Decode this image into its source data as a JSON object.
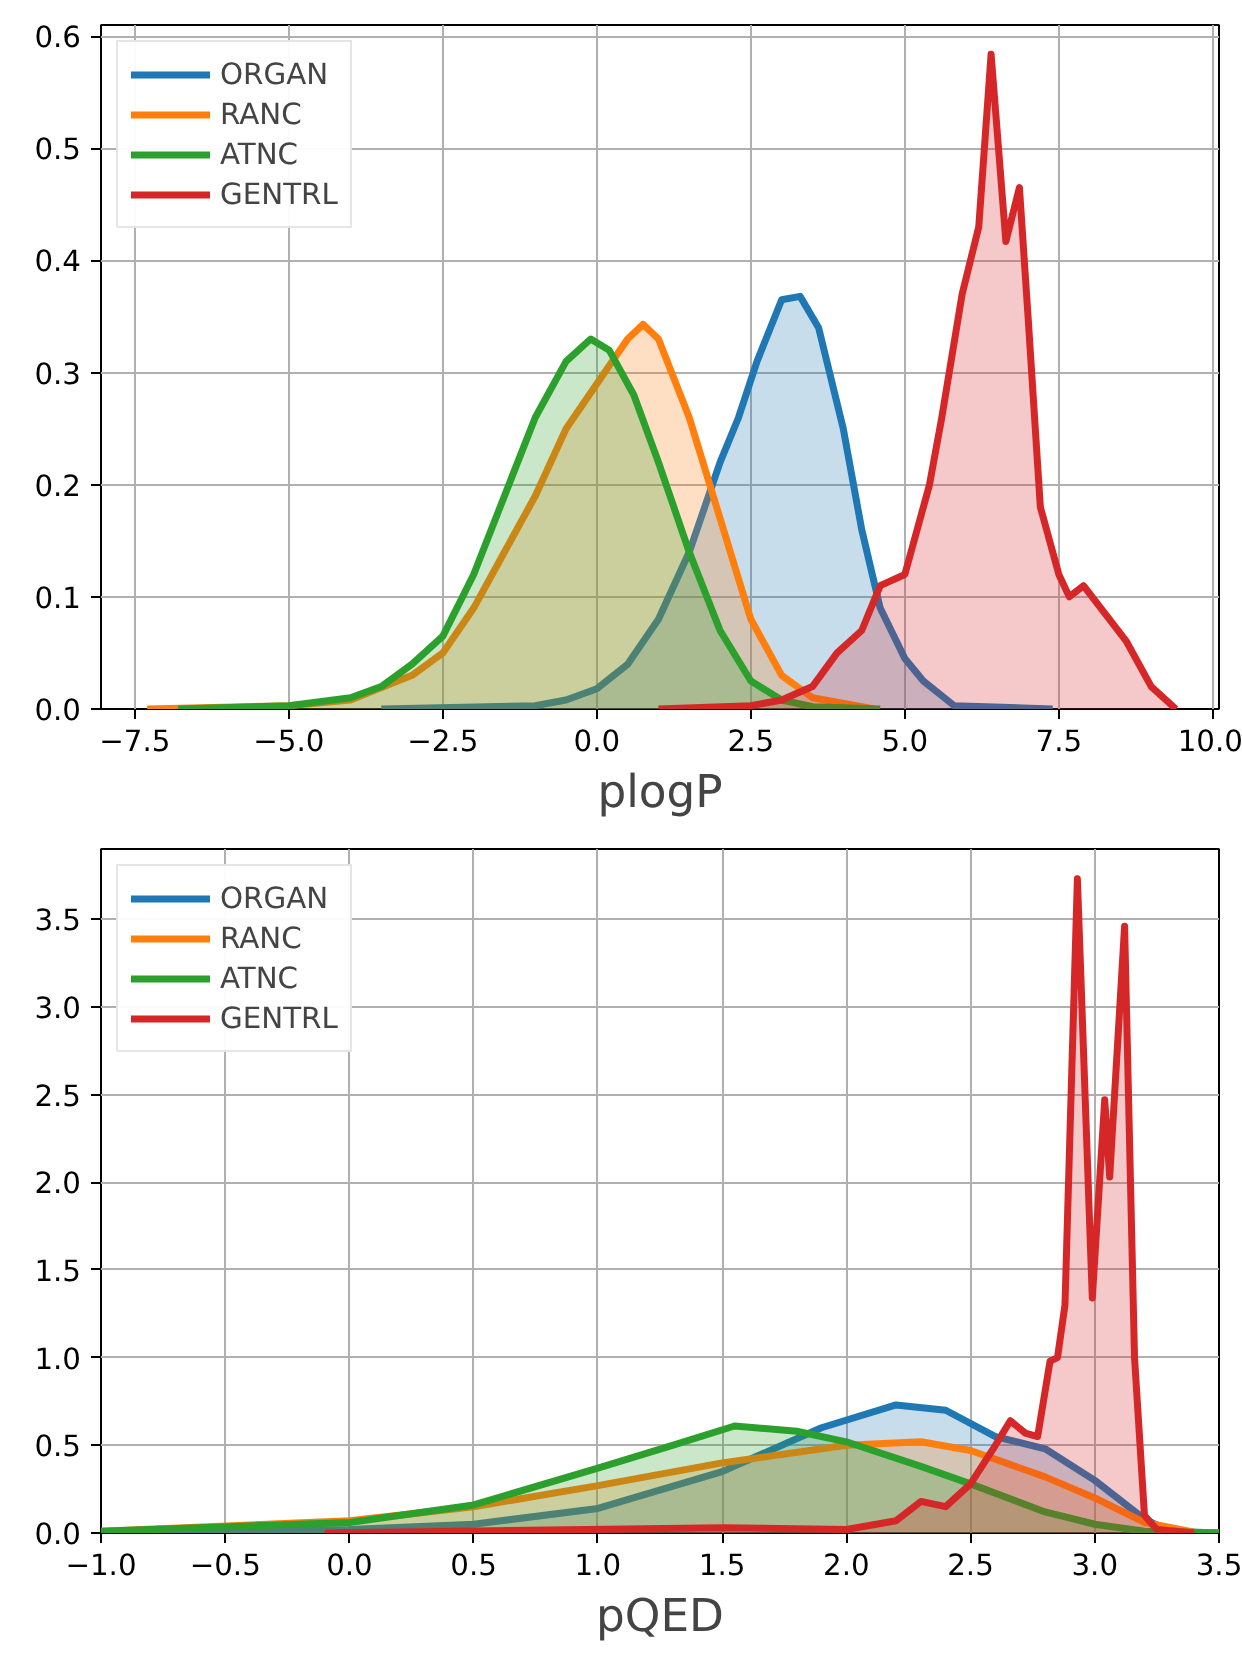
{
  "chart_data": [
    {
      "type": "area",
      "xlabel": "plogP",
      "xlim": [
        -8.05,
        10.1
      ],
      "ylim": [
        0,
        0.61
      ],
      "xticks": [
        {
          "value": -7.5,
          "label": "−7.5"
        },
        {
          "value": -5,
          "label": "−5.0"
        },
        {
          "value": -2.5,
          "label": "−2.5"
        },
        {
          "value": 0,
          "label": "0.0"
        },
        {
          "value": 2.5,
          "label": "2.5"
        },
        {
          "value": 5,
          "label": "5.0"
        },
        {
          "value": 7.5,
          "label": "7.5"
        },
        {
          "value": 10,
          "label": "10.0"
        }
      ],
      "yticks": [
        {
          "value": 0,
          "label": "0.0"
        },
        {
          "value": 0.1,
          "label": "0.1"
        },
        {
          "value": 0.2,
          "label": "0.2"
        },
        {
          "value": 0.3,
          "label": "0.3"
        },
        {
          "value": 0.4,
          "label": "0.4"
        },
        {
          "value": 0.5,
          "label": "0.5"
        },
        {
          "value": 0.6,
          "label": "0.6"
        }
      ],
      "grid": true,
      "legend": "top left",
      "line_style": "solid",
      "series": [
        {
          "name": "ORGAN",
          "color": "#1f77b4",
          "x": [
            -3.5,
            -1,
            -0.5,
            0,
            0.5,
            1,
            1.5,
            2,
            2.3,
            2.6,
            3,
            3.3,
            3.6,
            4,
            4.3,
            4.6,
            5,
            5.3,
            5.8,
            7.4
          ],
          "values": [
            0,
            0.003,
            0.008,
            0.018,
            0.04,
            0.08,
            0.14,
            0.22,
            0.26,
            0.31,
            0.365,
            0.368,
            0.34,
            0.25,
            0.16,
            0.09,
            0.045,
            0.025,
            0.003,
            0
          ]
        },
        {
          "name": "RANC",
          "color": "#ff7f0e",
          "x": [
            -7.3,
            -5,
            -4,
            -3,
            -2.5,
            -2,
            -1.5,
            -1,
            -0.5,
            0,
            0.5,
            0.75,
            1,
            1.5,
            2,
            2.5,
            3,
            3.5,
            4.5
          ],
          "values": [
            0,
            0.003,
            0.008,
            0.03,
            0.05,
            0.09,
            0.14,
            0.19,
            0.25,
            0.29,
            0.33,
            0.343,
            0.33,
            0.26,
            0.17,
            0.08,
            0.03,
            0.01,
            0
          ]
        },
        {
          "name": "ATNC",
          "color": "#2ca02c",
          "x": [
            -6.8,
            -5,
            -4,
            -3.5,
            -3,
            -2.5,
            -2,
            -1.5,
            -1,
            -0.5,
            -0.1,
            0.2,
            0.6,
            1,
            1.5,
            2,
            2.5,
            3,
            3.5,
            4.6
          ],
          "values": [
            0,
            0.003,
            0.01,
            0.02,
            0.04,
            0.065,
            0.12,
            0.19,
            0.26,
            0.31,
            0.33,
            0.32,
            0.28,
            0.22,
            0.14,
            0.07,
            0.025,
            0.008,
            0.002,
            0
          ]
        },
        {
          "name": "GENTRL",
          "color": "#d62728",
          "x": [
            1,
            2.5,
            3,
            3.5,
            3.9,
            4.3,
            4.6,
            5,
            5.4,
            5.6,
            5.93,
            6.2,
            6.4,
            6.64,
            6.86,
            7.0,
            7.2,
            7.5,
            7.67,
            7.9,
            8.25,
            8.6,
            9,
            9.4
          ],
          "values": [
            0,
            0.003,
            0.008,
            0.02,
            0.05,
            0.07,
            0.11,
            0.12,
            0.2,
            0.26,
            0.37,
            0.43,
            0.584,
            0.417,
            0.465,
            0.35,
            0.18,
            0.12,
            0.1,
            0.11,
            0.085,
            0.06,
            0.02,
            0
          ]
        }
      ]
    },
    {
      "type": "area",
      "xlabel": "pQED",
      "xlim": [
        -1,
        3.5
      ],
      "ylim": [
        0,
        3.9
      ],
      "xticks": [
        {
          "value": -1,
          "label": "−1.0"
        },
        {
          "value": -0.5,
          "label": "−0.5"
        },
        {
          "value": 0,
          "label": "0.0"
        },
        {
          "value": 0.5,
          "label": "0.5"
        },
        {
          "value": 1,
          "label": "1.0"
        },
        {
          "value": 1.5,
          "label": "1.5"
        },
        {
          "value": 2,
          "label": "2.0"
        },
        {
          "value": 2.5,
          "label": "2.5"
        },
        {
          "value": 3,
          "label": "3.0"
        },
        {
          "value": 3.5,
          "label": "3.5"
        }
      ],
      "yticks": [
        {
          "value": 0,
          "label": "0.0"
        },
        {
          "value": 0.5,
          "label": "0.5"
        },
        {
          "value": 1,
          "label": "1.0"
        },
        {
          "value": 1.5,
          "label": "1.5"
        },
        {
          "value": 2,
          "label": "2.0"
        },
        {
          "value": 2.5,
          "label": "2.5"
        },
        {
          "value": 3,
          "label": "3.0"
        },
        {
          "value": 3.5,
          "label": "3.5"
        }
      ],
      "grid": true,
      "legend": "top left",
      "line_style": "solid",
      "series": [
        {
          "name": "ORGAN",
          "color": "#1f77b4",
          "x": [
            -1,
            0,
            0.5,
            1,
            1.5,
            1.9,
            2.2,
            2.4,
            2.6,
            2.8,
            3,
            3.2,
            3.3,
            3.5
          ],
          "values": [
            0,
            0.02,
            0.05,
            0.14,
            0.35,
            0.6,
            0.73,
            0.7,
            0.55,
            0.48,
            0.3,
            0.08,
            0.01,
            0
          ]
        },
        {
          "name": "RANC",
          "color": "#ff7f0e",
          "x": [
            -1,
            0,
            0.5,
            1,
            1.5,
            2,
            2.3,
            2.5,
            2.8,
            3,
            3.2,
            3.4,
            3.5
          ],
          "values": [
            0.01,
            0.07,
            0.15,
            0.27,
            0.4,
            0.5,
            0.52,
            0.47,
            0.32,
            0.2,
            0.06,
            0.005,
            0
          ]
        },
        {
          "name": "ATNC",
          "color": "#2ca02c",
          "x": [
            -1,
            0,
            0.5,
            1,
            1.3,
            1.55,
            1.8,
            2,
            2.3,
            2.5,
            2.8,
            3,
            3.2,
            3.5
          ],
          "values": [
            0.01,
            0.06,
            0.16,
            0.37,
            0.5,
            0.61,
            0.58,
            0.52,
            0.38,
            0.28,
            0.12,
            0.05,
            0.01,
            0
          ]
        },
        {
          "name": "GENTRL",
          "color": "#d62728",
          "x": [
            -0.1,
            1.5,
            2,
            2.2,
            2.3,
            2.4,
            2.5,
            2.6,
            2.66,
            2.72,
            2.77,
            2.82,
            2.85,
            2.88,
            2.93,
            2.99,
            3.04,
            3.06,
            3.12,
            3.16,
            3.2,
            3.25,
            3.4
          ],
          "values": [
            0,
            0.03,
            0.02,
            0.07,
            0.18,
            0.15,
            0.28,
            0.5,
            0.64,
            0.57,
            0.55,
            0.98,
            1.0,
            1.3,
            3.73,
            1.34,
            2.47,
            2.03,
            3.46,
            1.0,
            0.1,
            0.02,
            0
          ]
        }
      ]
    }
  ]
}
